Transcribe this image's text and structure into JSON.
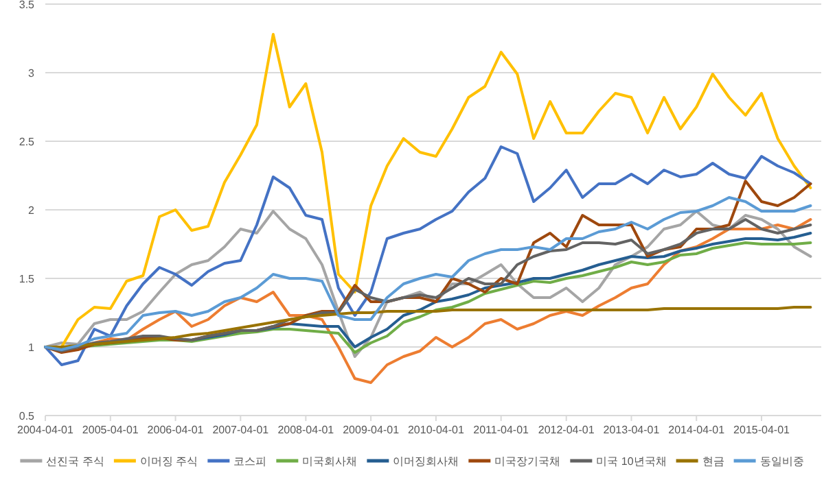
{
  "chart_data": {
    "type": "line",
    "x": [
      "2004-04-01",
      "2004-07-01",
      "2004-10-01",
      "2005-01-01",
      "2005-04-01",
      "2005-07-01",
      "2005-10-01",
      "2006-01-01",
      "2006-04-01",
      "2006-07-01",
      "2006-10-01",
      "2007-01-01",
      "2007-04-01",
      "2007-07-01",
      "2007-10-01",
      "2008-01-01",
      "2008-04-01",
      "2008-07-01",
      "2008-10-01",
      "2009-01-01",
      "2009-04-01",
      "2009-07-01",
      "2009-10-01",
      "2010-01-01",
      "2010-04-01",
      "2010-07-01",
      "2010-10-01",
      "2011-01-01",
      "2011-04-01",
      "2011-07-01",
      "2011-10-01",
      "2012-01-01",
      "2012-04-01",
      "2012-07-01",
      "2012-10-01",
      "2013-01-01",
      "2013-04-01",
      "2013-07-01",
      "2013-10-01",
      "2014-01-01",
      "2014-04-01",
      "2014-07-01",
      "2014-10-01",
      "2015-01-01",
      "2015-04-01",
      "2015-07-01",
      "2015-10-01",
      "2016-01-01"
    ],
    "xlim": [
      "2004-04-01",
      "2016-03-01"
    ],
    "xticks": [
      "2004-04-01",
      "2005-04-01",
      "2006-04-01",
      "2007-04-01",
      "2008-04-01",
      "2009-04-01",
      "2010-04-01",
      "2011-04-01",
      "2012-04-01",
      "2013-04-01",
      "2014-04-01",
      "2015-04-01"
    ],
    "ylim": [
      0.5,
      3.5
    ],
    "yticks": [
      0.5,
      1,
      1.5,
      2,
      2.5,
      3,
      3.5
    ],
    "grid": "y",
    "legend": "bottom",
    "marker": "none",
    "line_style": "solid",
    "series": [
      {
        "color": "#ed7d31",
        "values": [
          null,
          null,
          1.0,
          1.03,
          1.06,
          1.05,
          1.13,
          1.2,
          1.26,
          1.15,
          1.2,
          1.3,
          1.36,
          1.33,
          1.4,
          1.23,
          1.23,
          1.2,
          1.0,
          0.77,
          0.74,
          0.87,
          0.93,
          0.97,
          1.07,
          1.0,
          1.07,
          1.17,
          1.2,
          1.13,
          1.17,
          1.23,
          1.26,
          1.23,
          1.3,
          1.36,
          1.43,
          1.46,
          1.6,
          1.7,
          1.73,
          1.79,
          1.86,
          1.86,
          1.86,
          1.89,
          1.86,
          1.93
        ]
      },
      {
        "name": "선진국 주식",
        "color": "#a5a5a5",
        "values": [
          1.0,
          1.03,
          1.02,
          1.17,
          1.2,
          1.2,
          1.26,
          1.4,
          1.53,
          1.6,
          1.63,
          1.73,
          1.86,
          1.83,
          1.99,
          1.86,
          1.79,
          1.6,
          1.26,
          0.93,
          1.07,
          1.33,
          1.36,
          1.4,
          1.33,
          1.46,
          1.46,
          1.53,
          1.6,
          1.46,
          1.36,
          1.36,
          1.43,
          1.33,
          1.43,
          1.6,
          1.66,
          1.73,
          1.86,
          1.89,
          1.99,
          1.89,
          1.86,
          1.96,
          1.93,
          1.86,
          1.73,
          1.66
        ]
      },
      {
        "name": "이머징 주식",
        "color": "#ffc000",
        "values": [
          1.0,
          1.0,
          1.2,
          1.29,
          1.28,
          1.48,
          1.52,
          1.95,
          2.0,
          1.85,
          1.88,
          2.2,
          2.4,
          2.62,
          3.28,
          2.75,
          2.92,
          2.42,
          1.53,
          1.4,
          2.03,
          2.32,
          2.52,
          2.42,
          2.39,
          2.59,
          2.82,
          2.9,
          3.15,
          2.99,
          2.52,
          2.79,
          2.56,
          2.56,
          2.72,
          2.85,
          2.82,
          2.56,
          2.82,
          2.59,
          2.75,
          2.99,
          2.82,
          2.69,
          2.85,
          2.52,
          2.32,
          2.16
        ]
      },
      {
        "name": "코스피",
        "color": "#4472c4",
        "values": [
          1.0,
          0.87,
          0.9,
          1.13,
          1.08,
          1.3,
          1.46,
          1.58,
          1.53,
          1.45,
          1.55,
          1.61,
          1.63,
          1.89,
          2.24,
          2.16,
          1.96,
          1.93,
          1.43,
          1.23,
          1.4,
          1.79,
          1.83,
          1.86,
          1.93,
          1.99,
          2.13,
          2.23,
          2.46,
          2.41,
          2.06,
          2.16,
          2.29,
          2.09,
          2.19,
          2.19,
          2.26,
          2.19,
          2.29,
          2.24,
          2.26,
          2.34,
          2.26,
          2.23,
          2.39,
          2.32,
          2.27,
          2.19
        ]
      },
      {
        "name": "미국회사채",
        "color": "#70ad47",
        "values": [
          1.0,
          0.97,
          1.0,
          1.01,
          1.02,
          1.03,
          1.04,
          1.05,
          1.05,
          1.04,
          1.06,
          1.08,
          1.1,
          1.11,
          1.13,
          1.13,
          1.12,
          1.11,
          1.1,
          0.96,
          1.03,
          1.08,
          1.18,
          1.22,
          1.27,
          1.29,
          1.33,
          1.39,
          1.42,
          1.45,
          1.48,
          1.47,
          1.5,
          1.52,
          1.55,
          1.58,
          1.62,
          1.6,
          1.62,
          1.67,
          1.68,
          1.72,
          1.74,
          1.76,
          1.75,
          1.75,
          1.75,
          1.76
        ]
      },
      {
        "name": "이머징회사채",
        "color": "#255e91",
        "values": [
          1.0,
          0.98,
          1.0,
          1.02,
          1.03,
          1.04,
          1.06,
          1.07,
          1.06,
          1.05,
          1.07,
          1.09,
          1.12,
          1.12,
          1.14,
          1.17,
          1.16,
          1.15,
          1.15,
          1.0,
          1.07,
          1.13,
          1.23,
          1.27,
          1.33,
          1.35,
          1.38,
          1.43,
          1.45,
          1.47,
          1.5,
          1.5,
          1.53,
          1.56,
          1.6,
          1.63,
          1.66,
          1.65,
          1.66,
          1.7,
          1.72,
          1.75,
          1.77,
          1.79,
          1.79,
          1.78,
          1.8,
          1.83
        ]
      },
      {
        "name": "미국장기국채",
        "color": "#9e480e",
        "values": [
          1.0,
          0.96,
          0.98,
          1.02,
          1.03,
          1.05,
          1.07,
          1.07,
          1.05,
          1.05,
          1.08,
          1.1,
          1.12,
          1.12,
          1.15,
          1.17,
          1.23,
          1.26,
          1.26,
          1.45,
          1.33,
          1.33,
          1.36,
          1.36,
          1.33,
          1.5,
          1.46,
          1.4,
          1.5,
          1.46,
          1.76,
          1.83,
          1.73,
          1.96,
          1.89,
          1.89,
          1.89,
          1.66,
          1.71,
          1.73,
          1.86,
          1.86,
          1.89,
          2.21,
          2.06,
          2.03,
          2.09,
          2.19
        ]
      },
      {
        "name": "미국 10년국채",
        "color": "#636363",
        "values": [
          1.0,
          0.97,
          1.0,
          1.03,
          1.04,
          1.06,
          1.08,
          1.08,
          1.06,
          1.05,
          1.08,
          1.1,
          1.12,
          1.12,
          1.15,
          1.2,
          1.22,
          1.25,
          1.25,
          1.42,
          1.36,
          1.33,
          1.36,
          1.38,
          1.36,
          1.43,
          1.5,
          1.46,
          1.46,
          1.6,
          1.66,
          1.7,
          1.71,
          1.76,
          1.76,
          1.75,
          1.78,
          1.68,
          1.71,
          1.75,
          1.83,
          1.86,
          1.86,
          1.93,
          1.86,
          1.83,
          1.86,
          1.89
        ]
      },
      {
        "name": "현금",
        "color": "#997300",
        "values": [
          1.0,
          1.0,
          1.01,
          1.02,
          1.03,
          1.04,
          1.05,
          1.06,
          1.07,
          1.09,
          1.1,
          1.12,
          1.14,
          1.16,
          1.18,
          1.2,
          1.22,
          1.23,
          1.24,
          1.25,
          1.25,
          1.26,
          1.26,
          1.26,
          1.26,
          1.27,
          1.27,
          1.27,
          1.27,
          1.27,
          1.27,
          1.27,
          1.27,
          1.27,
          1.27,
          1.27,
          1.27,
          1.27,
          1.28,
          1.28,
          1.28,
          1.28,
          1.28,
          1.28,
          1.28,
          1.28,
          1.29,
          1.29
        ]
      },
      {
        "name": "동일비중",
        "color": "#5b9bd5",
        "values": [
          1.0,
          0.98,
          1.01,
          1.06,
          1.08,
          1.1,
          1.23,
          1.25,
          1.26,
          1.23,
          1.26,
          1.33,
          1.36,
          1.43,
          1.53,
          1.5,
          1.5,
          1.48,
          1.23,
          1.2,
          1.2,
          1.36,
          1.46,
          1.5,
          1.53,
          1.51,
          1.63,
          1.68,
          1.71,
          1.71,
          1.73,
          1.71,
          1.79,
          1.79,
          1.84,
          1.86,
          1.91,
          1.86,
          1.93,
          1.98,
          1.99,
          2.03,
          2.09,
          2.06,
          1.99,
          1.99,
          1.99,
          2.03
        ]
      }
    ]
  }
}
